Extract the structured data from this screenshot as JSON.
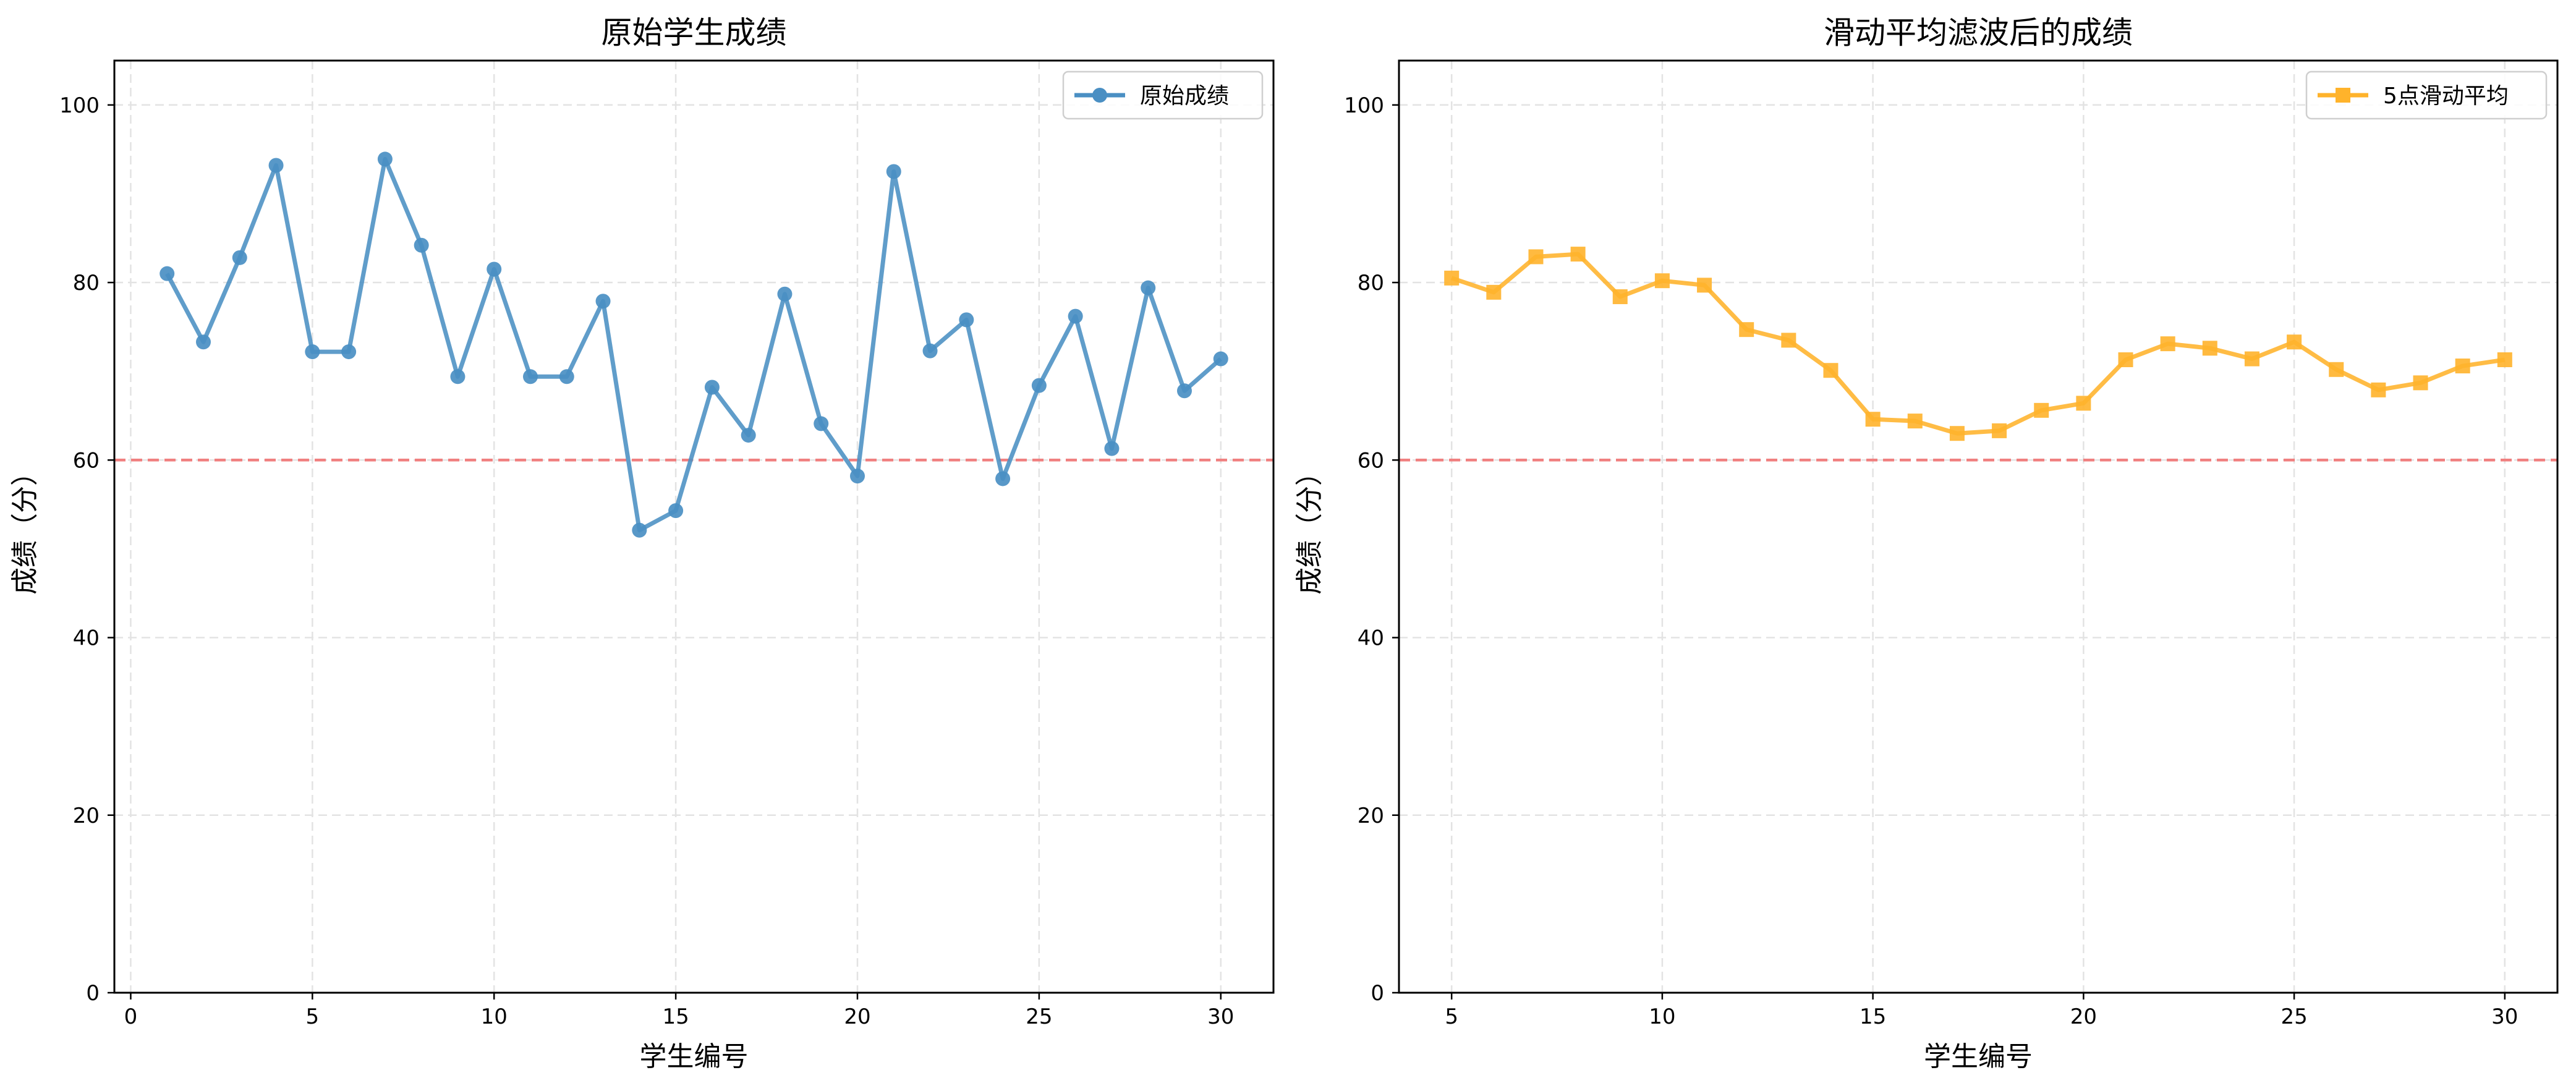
{
  "chart_data": [
    {
      "type": "line",
      "title": "原始学生成绩",
      "xlabel": "学生编号",
      "ylabel": "成绩（分）",
      "xlim": [
        -0.45,
        31.45
      ],
      "ylim": [
        0,
        105
      ],
      "xticks": [
        0,
        5,
        10,
        15,
        20,
        25,
        30
      ],
      "yticks": [
        0,
        20,
        40,
        60,
        80,
        100
      ],
      "grid": true,
      "legend_position": "top-right",
      "reference_line": {
        "y": 60,
        "color": "#f08080",
        "style": "dashed"
      },
      "series": [
        {
          "name": "原始成绩",
          "color": "#4a8fc3",
          "marker": "circle",
          "x": [
            1,
            2,
            3,
            4,
            5,
            6,
            7,
            8,
            9,
            10,
            11,
            12,
            13,
            14,
            15,
            16,
            17,
            18,
            19,
            20,
            21,
            22,
            23,
            24,
            25,
            26,
            27,
            28,
            29,
            30
          ],
          "y": [
            81.0,
            73.3,
            82.8,
            93.2,
            72.2,
            72.2,
            93.9,
            84.2,
            69.4,
            81.5,
            69.4,
            69.4,
            77.9,
            52.1,
            54.3,
            68.2,
            62.8,
            78.7,
            64.1,
            58.2,
            92.5,
            72.3,
            75.8,
            57.9,
            68.4,
            76.2,
            61.3,
            79.4,
            67.8,
            71.4
          ]
        }
      ]
    },
    {
      "type": "line",
      "title": "滑动平均滤波后的成绩",
      "xlabel": "学生编号",
      "ylabel": "成绩（分）",
      "xlim": [
        3.75,
        31.25
      ],
      "ylim": [
        0,
        105
      ],
      "xticks": [
        5,
        10,
        15,
        20,
        25,
        30
      ],
      "yticks": [
        0,
        20,
        40,
        60,
        80,
        100
      ],
      "grid": true,
      "legend_position": "top-right",
      "reference_line": {
        "y": 60,
        "color": "#f08080",
        "style": "dashed"
      },
      "series": [
        {
          "name": "5点滑动平均",
          "color": "#ffb32b",
          "marker": "square",
          "x": [
            5,
            6,
            7,
            8,
            9,
            10,
            11,
            12,
            13,
            14,
            15,
            16,
            17,
            18,
            19,
            20,
            21,
            22,
            23,
            24,
            25,
            26,
            27,
            28,
            29,
            30
          ],
          "y": [
            80.5,
            78.9,
            82.9,
            83.2,
            78.4,
            80.2,
            79.7,
            74.7,
            73.5,
            70.1,
            64.6,
            64.4,
            63.0,
            63.3,
            65.6,
            66.4,
            71.3,
            73.1,
            72.6,
            71.4,
            73.3,
            70.2,
            67.9,
            68.7,
            70.6,
            71.3
          ]
        }
      ]
    }
  ]
}
